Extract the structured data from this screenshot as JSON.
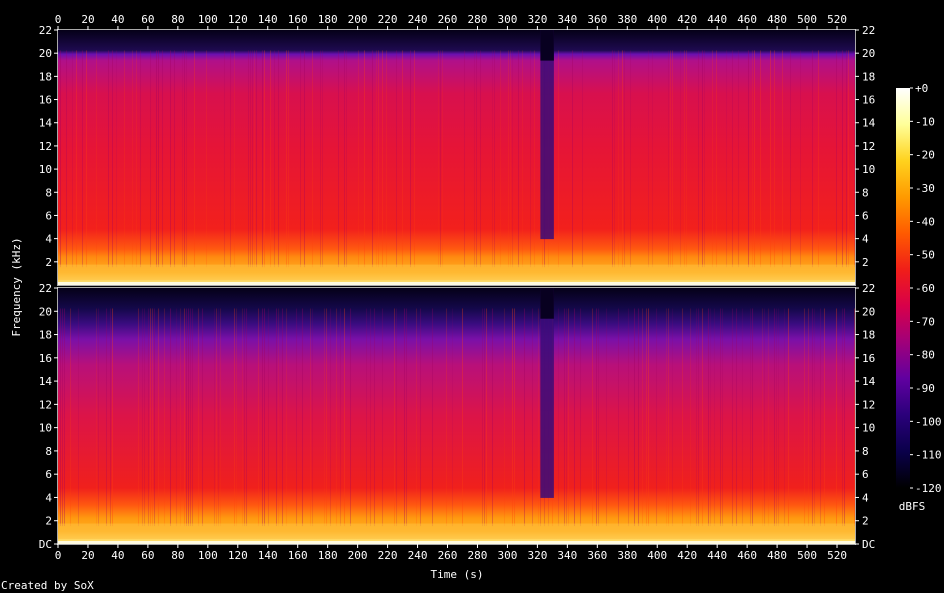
{
  "chart_data": {
    "type": "heatmap",
    "title": "",
    "xlabel": "Time (s)",
    "ylabel": "Frequency (kHz)",
    "xlim": [
      0,
      532
    ],
    "x_ticks": [
      "0",
      "20",
      "40",
      "60",
      "80",
      "100",
      "120",
      "140",
      "160",
      "180",
      "200",
      "220",
      "240",
      "260",
      "280",
      "300",
      "320",
      "340",
      "360",
      "380",
      "400",
      "420",
      "440",
      "460",
      "480",
      "500",
      "520"
    ],
    "y_ticks": [
      "DC",
      "2",
      "4",
      "6",
      "8",
      "10",
      "12",
      "14",
      "16",
      "18",
      "20",
      "22"
    ],
    "channels": [
      {
        "ylim": [
          0,
          22
        ]
      },
      {
        "ylim": [
          0,
          22
        ]
      }
    ],
    "colorbar": {
      "label": "dBFS",
      "range": [
        -120,
        0
      ],
      "ticks": [
        "+0",
        "-10",
        "-20",
        "-30",
        "-40",
        "-50",
        "-60",
        "-70",
        "-80",
        "-90",
        "-100",
        "-110",
        "-120"
      ],
      "colors": [
        "#ffffff",
        "#ffff99",
        "#ffd21e",
        "#ff9a00",
        "#ff5a00",
        "#f01e19",
        "#d8004a",
        "#a0007a",
        "#6000a0",
        "#2a007a",
        "#0a004a",
        "#000000"
      ]
    }
  },
  "footer": {
    "credit": "Created by SoX"
  }
}
